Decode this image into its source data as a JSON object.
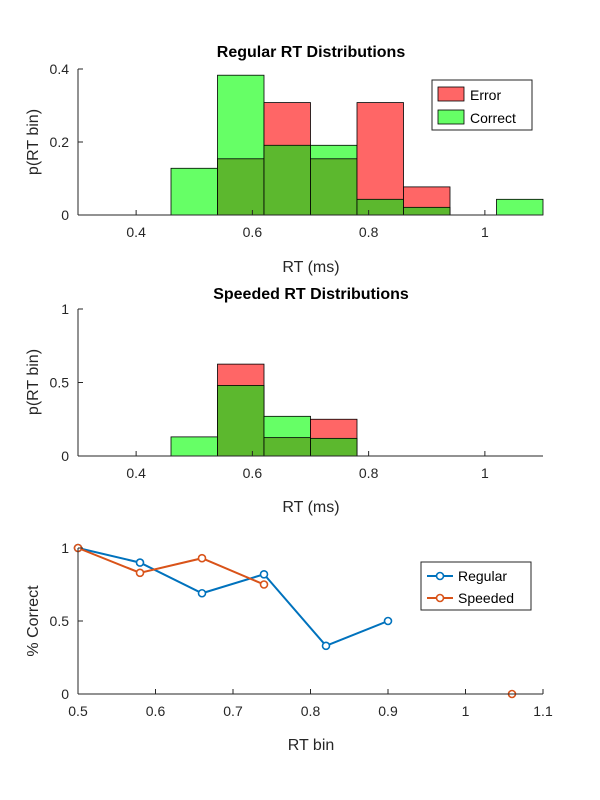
{
  "chart_data": [
    {
      "type": "bar",
      "title": "Regular RT Distributions",
      "xlabel": "RT (ms)",
      "ylabel": "p(RT bin)",
      "xlim": [
        0.3,
        1.1
      ],
      "ylim": [
        0,
        0.4
      ],
      "xticks": [
        0.4,
        0.6,
        0.8,
        1
      ],
      "xtick_labels": [
        "0.4",
        "0.6",
        "0.8",
        "1"
      ],
      "yticks": [
        0,
        0.2,
        0.4
      ],
      "ytick_labels": [
        "0",
        "0.2",
        "0.4"
      ],
      "bin_edges": [
        0.46,
        0.54,
        0.62,
        0.7,
        0.78,
        0.86,
        0.94,
        1.02,
        1.1
      ],
      "legend_position": "top-right",
      "series": [
        {
          "name": "Error",
          "color": "#ff6666",
          "values": [
            0,
            0.154,
            0.308,
            0.154,
            0.308,
            0.077,
            0,
            0
          ]
        },
        {
          "name": "Correct",
          "color": "#66ff66",
          "values": [
            0.128,
            0.383,
            0.191,
            0.191,
            0.043,
            0.021,
            0,
            0.043
          ]
        }
      ]
    },
    {
      "type": "bar",
      "title": "Speeded RT Distributions",
      "xlabel": "RT (ms)",
      "ylabel": "p(RT bin)",
      "xlim": [
        0.3,
        1.1
      ],
      "ylim": [
        0,
        1
      ],
      "xticks": [
        0.4,
        0.6,
        0.8,
        1
      ],
      "xtick_labels": [
        "0.4",
        "0.6",
        "0.8",
        "1"
      ],
      "yticks": [
        0,
        0.5,
        1
      ],
      "ytick_labels": [
        "0",
        "0.5",
        "1"
      ],
      "bin_edges": [
        0.46,
        0.54,
        0.62,
        0.7,
        0.78
      ],
      "series": [
        {
          "name": "Error",
          "color": "#ff6666",
          "values": [
            0,
            0.625,
            0.125,
            0.25
          ]
        },
        {
          "name": "Correct",
          "color": "#66ff66",
          "values": [
            0.13,
            0.48,
            0.27,
            0.12
          ]
        }
      ]
    },
    {
      "type": "line",
      "title": "",
      "xlabel": "RT bin",
      "ylabel": "% Correct",
      "xlim": [
        0.5,
        1.1
      ],
      "ylim": [
        0,
        1
      ],
      "xticks": [
        0.5,
        0.6,
        0.7,
        0.8,
        0.9,
        1,
        1.1
      ],
      "xtick_labels": [
        "0.5",
        "0.6",
        "0.7",
        "0.8",
        "0.9",
        "1",
        "1.1"
      ],
      "yticks": [
        0,
        0.5,
        1
      ],
      "ytick_labels": [
        "0",
        "0.5",
        "1"
      ],
      "legend_position": "top-right",
      "series": [
        {
          "name": "Regular",
          "color": "#0072bd",
          "points": [
            [
              0.5,
              1.0
            ],
            [
              0.58,
              0.9
            ],
            [
              0.66,
              0.69
            ],
            [
              0.74,
              0.82
            ],
            [
              0.82,
              0.33
            ],
            [
              0.9,
              0.5
            ]
          ]
        },
        {
          "name": "Speeded",
          "color": "#d95319",
          "points": [
            [
              0.5,
              1.0
            ],
            [
              0.58,
              0.83
            ],
            [
              0.66,
              0.93
            ],
            [
              0.74,
              0.75
            ]
          ],
          "extra_points": [
            [
              1.06,
              0.0
            ]
          ]
        }
      ]
    }
  ]
}
